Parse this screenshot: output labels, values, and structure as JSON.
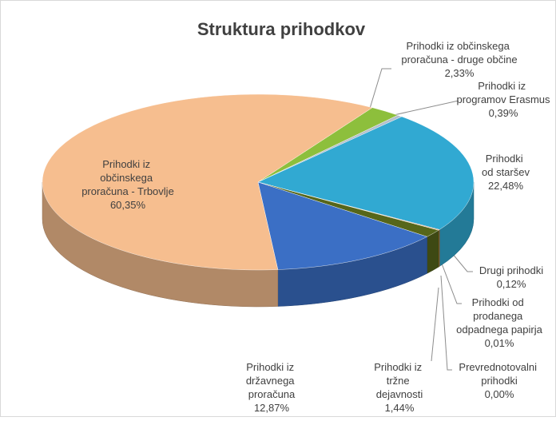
{
  "chart_data": {
    "type": "pie",
    "title": "Struktura prihodkov",
    "categories": [
      "Prihodki iz občinskega proračuna - druge občine",
      "Prihodki iz programov Erasmus",
      "Prihodki od staršev",
      "Drugi prihodki",
      "Prihodki od prodanega odpadnega papirja",
      "Prevrednotovalni prihodki",
      "Prihodki iz tržne dejavnosti",
      "Prihodki iz državnega proračuna",
      "Prihodki iz občinskega proračuna - Trbovlje"
    ],
    "values": [
      2.33,
      0.39,
      22.48,
      0.12,
      0.01,
      0.0,
      1.44,
      12.87,
      60.35
    ],
    "value_labels": [
      "2,33%",
      "0,39%",
      "22,48%",
      "0,12%",
      "0,01%",
      "0,00%",
      "1,44%",
      "12,87%",
      "60,35%"
    ],
    "colors": [
      "#8dbf3c",
      "#b4c0cc",
      "#31a9d2",
      "#e0782e",
      "#98c65a",
      "#5e5e5e",
      "#56661a",
      "#3b6fc5",
      "#f6be8f"
    ]
  }
}
